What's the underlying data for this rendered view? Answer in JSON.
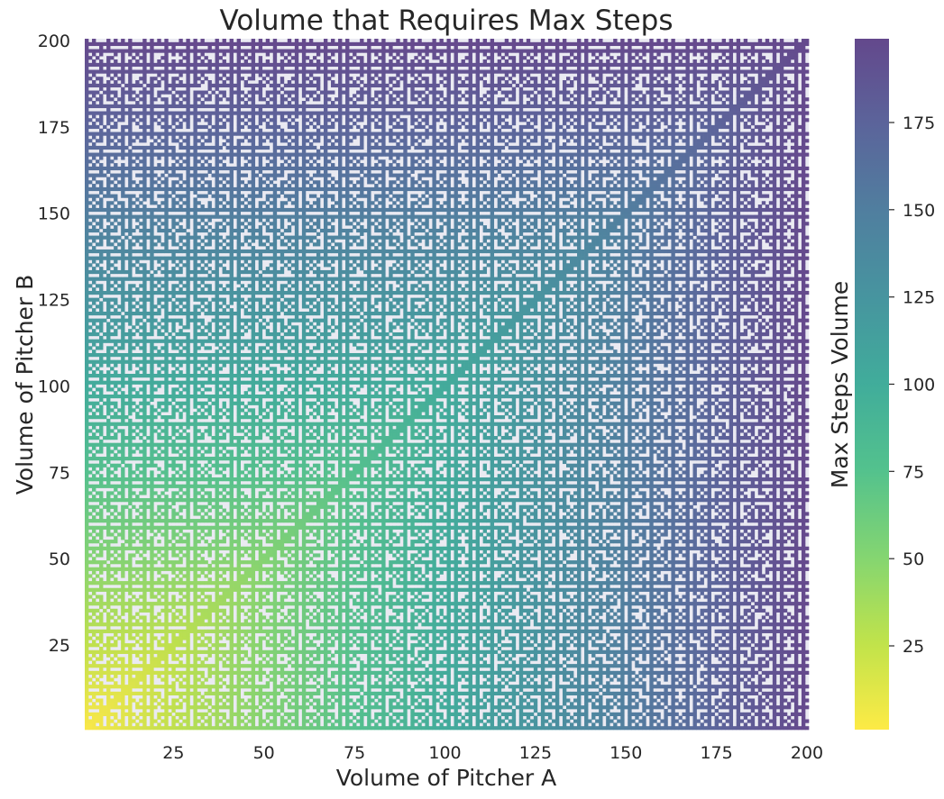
{
  "chart_data": {
    "type": "heatmap",
    "title": "Volume that Requires Max Steps",
    "xlabel": "Volume of Pitcher A",
    "ylabel": "Volume of Pitcher B",
    "xlim": [
      1,
      200
    ],
    "ylim": [
      1,
      200
    ],
    "x_ticks": [
      25,
      50,
      75,
      100,
      125,
      150,
      175,
      200
    ],
    "y_ticks": [
      25,
      50,
      75,
      100,
      125,
      150,
      175,
      200
    ],
    "cell_value_rule": "value = max(A, B) where gcd(A, B) = 1, otherwise masked (not shown); diagonal A = B shown with value A",
    "colorscale": "viridis_r",
    "color_range": [
      1,
      199
    ],
    "grid": false,
    "colorbar": {
      "label": "Max Steps Volume",
      "ticks": [
        25,
        50,
        75,
        100,
        125,
        150,
        175
      ],
      "position": "right"
    },
    "masked_color": "#eaeaf2"
  }
}
